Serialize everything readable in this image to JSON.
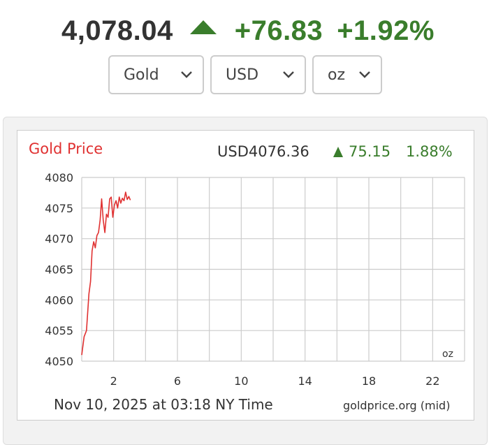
{
  "ticker": {
    "price": "4,078.04",
    "change": "+76.83",
    "percent": "+1.92%",
    "direction_icon": "arrow-up-icon"
  },
  "selects": {
    "metal": "Gold",
    "currency": "USD",
    "unit": "oz"
  },
  "colors": {
    "up": "#3a7d2c",
    "chart_line": "#e03131",
    "grid": "#cccccc"
  },
  "chart_data": {
    "type": "line",
    "title": "Gold Price",
    "price_label": "USD4076.36",
    "change_label": "75.15",
    "change_pct_label": "1.88%",
    "unit_label": "oz",
    "footer_left": "Nov 10, 2025 at 03:18 NY Time",
    "footer_right": "goldprice.org (mid)",
    "y_ticks": [
      "4080",
      "4075",
      "4070",
      "4065",
      "4060",
      "4055",
      "4050"
    ],
    "x_ticks": [
      "2",
      "6",
      "10",
      "14",
      "18",
      "22"
    ],
    "xlim": [
      0,
      24
    ],
    "ylim": [
      4050,
      4080
    ],
    "grid": true,
    "series": [
      {
        "x": [
          0.0,
          0.15,
          0.3,
          0.45,
          0.55,
          0.65,
          0.75,
          0.85,
          0.95,
          1.05,
          1.15,
          1.25,
          1.35,
          1.45,
          1.55,
          1.65,
          1.75,
          1.85,
          1.95,
          2.05,
          2.15,
          2.25,
          2.35,
          2.45,
          2.55,
          2.65,
          2.75,
          2.85,
          2.95,
          3.05
        ],
        "y": [
          4051,
          4054,
          4055,
          4061,
          4063,
          4068,
          4069.5,
          4068.5,
          4070.5,
          4071,
          4073,
          4076.5,
          4073,
          4071,
          4074,
          4073.5,
          4076.5,
          4076.8,
          4073.5,
          4075.5,
          4076.2,
          4075,
          4076.8,
          4075.8,
          4076.6,
          4076.2,
          4077.6,
          4076.4,
          4076.9,
          4076.3
        ]
      }
    ]
  }
}
